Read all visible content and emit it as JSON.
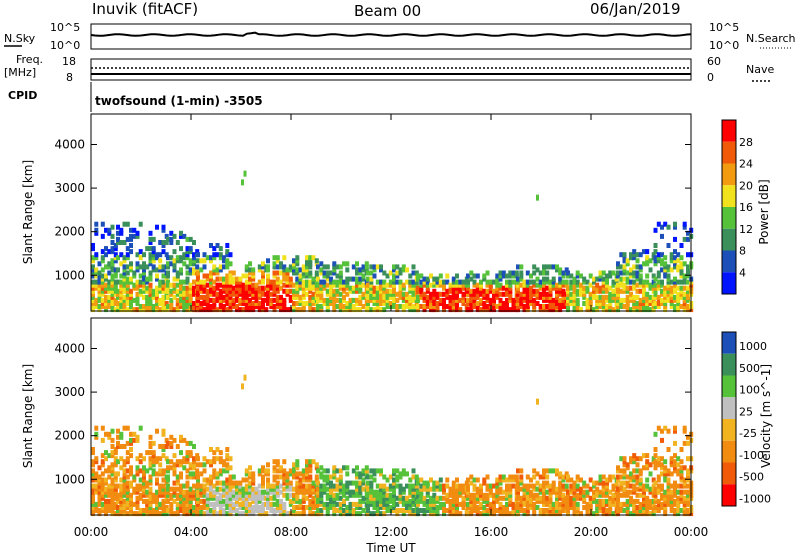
{
  "header": {
    "station": "Inuvik (fitACF)",
    "beam": "Beam 00",
    "date": "06/Jan/2019"
  },
  "top_panels": {
    "nsky_label": "N.Sky",
    "nsky_ticks": [
      "10^5",
      "10^0"
    ],
    "nsearch_label": "N.Search",
    "nsearch_ticks": [
      "10^5",
      "10^0"
    ],
    "freq_label_1": "Freq.",
    "freq_label_2": "[MHz]",
    "freq_ticks": [
      "18",
      "8"
    ],
    "nave_label": "Nave",
    "nave_ticks": [
      "60",
      "0"
    ],
    "cpid_label": "CPID",
    "cpid_value": "twofsound (1-min) -3505"
  },
  "colors": {
    "power_scale": [
      "#0014ff",
      "#1c4fb8",
      "#3a8f5a",
      "#55c23a",
      "#f2e21e",
      "#f29a10",
      "#f05a08",
      "#ff0000"
    ],
    "velocity_scale": [
      "#ff0000",
      "#f05a08",
      "#f28c10",
      "#f2b320",
      "#c0c0c0",
      "#55c23a",
      "#3a8f5a",
      "#1c4fb8"
    ]
  },
  "chart_data": [
    {
      "type": "heatmap",
      "name": "power",
      "ylabel": "Slant Range [km]",
      "yticks": [
        "1000",
        "2000",
        "3000",
        "4000"
      ],
      "ylim": [
        180,
        4700
      ],
      "xlim": [
        0,
        24
      ],
      "colorbar_label": "Power [dB]",
      "colorbar_ticks": [
        "4",
        "8",
        "12",
        "16",
        "20",
        "24",
        "28"
      ],
      "bands": [
        {
          "t0": 0.0,
          "t1": 1.0,
          "r0": 200,
          "r1": 2200
        },
        {
          "t0": 1.0,
          "t1": 3.0,
          "r0": 200,
          "r1": 2200
        },
        {
          "t0": 3.0,
          "t1": 4.2,
          "r0": 200,
          "r1": 2000
        },
        {
          "t0": 4.2,
          "t1": 5.5,
          "r0": 200,
          "r1": 1700
        },
        {
          "t0": 5.5,
          "t1": 7.0,
          "r0": 200,
          "r1": 1300
        },
        {
          "t0": 7.0,
          "t1": 9.0,
          "r0": 200,
          "r1": 1400
        },
        {
          "t0": 9.0,
          "t1": 11.0,
          "r0": 200,
          "r1": 1300
        },
        {
          "t0": 11.0,
          "t1": 13.0,
          "r0": 200,
          "r1": 1200
        },
        {
          "t0": 13.0,
          "t1": 15.0,
          "r0": 200,
          "r1": 1000
        },
        {
          "t0": 15.0,
          "t1": 17.0,
          "r0": 200,
          "r1": 1100
        },
        {
          "t0": 17.0,
          "t1": 19.0,
          "r0": 200,
          "r1": 1200
        },
        {
          "t0": 19.0,
          "t1": 21.0,
          "r0": 200,
          "r1": 1100
        },
        {
          "t0": 21.0,
          "t1": 22.5,
          "r0": 200,
          "r1": 1600
        },
        {
          "t0": 22.5,
          "t1": 24.0,
          "r0": 200,
          "r1": 2200
        }
      ]
    },
    {
      "type": "heatmap",
      "name": "velocity",
      "xlabel": "Time UT",
      "ylabel": "Slant Range [km]",
      "xticks": [
        "00:00",
        "04:00",
        "08:00",
        "12:00",
        "16:00",
        "20:00",
        "00:00"
      ],
      "yticks": [
        "1000",
        "2000",
        "3000",
        "4000"
      ],
      "ylim": [
        180,
        4700
      ],
      "xlim": [
        0,
        24
      ],
      "colorbar_label": "Velocity [m s^-1]",
      "colorbar_ticks": [
        "1000",
        "500",
        "100",
        "25",
        "-25",
        "-100",
        "-500",
        "-1000"
      ]
    }
  ]
}
